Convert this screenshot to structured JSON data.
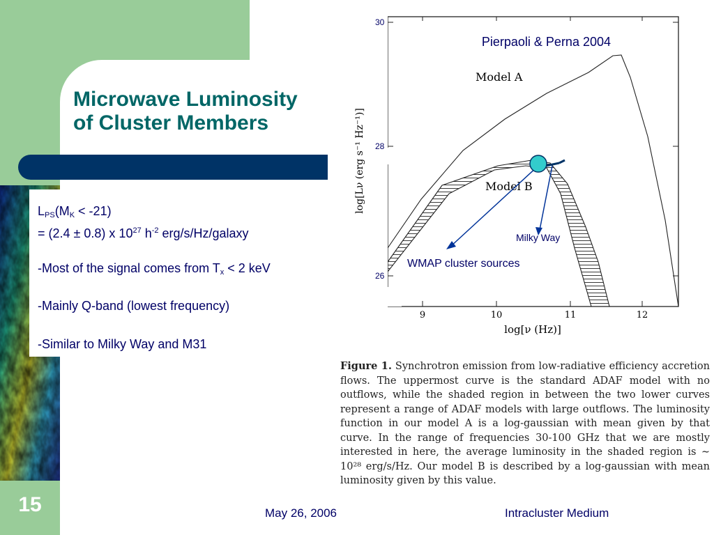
{
  "slide": {
    "title_line1": "Microwave Luminosity",
    "title_line2": "of Cluster Members",
    "number": "15",
    "footer_date": "May 26, 2006",
    "footer_name": "Intracluster Medium"
  },
  "body": {
    "lps_L": "L",
    "lps_sub": "PS",
    "lps_mid": "(M",
    "lps_k": "K",
    "lps_end": " < -21)",
    "value_prefix": "= (2.4 ± 0.8) x 10",
    "value_exp": "27",
    "value_h": " h",
    "value_hexp": "-2",
    "value_units": " erg/s/Hz/galaxy",
    "bullet1_a": "-Most of the signal comes from T",
    "bullet1_sub": "x",
    "bullet1_b": " < 2 keV",
    "bullet2": "-Mainly Q-band (lowest frequency)",
    "bullet3": "-Similar to Milky Way and M31"
  },
  "figure": {
    "citation": "Pierpaoli & Perna 2004",
    "label_model_a": "Model A",
    "label_model_b": "Model B",
    "label_milky_way": "Milky Way",
    "label_wmap": "WMAP cluster sources",
    "ylabel": "log[Lν (erg s⁻¹ Hz⁻¹)]",
    "xlabel": "log[ν (Hz)]",
    "y_tick_30": "30",
    "y_tick_28": "28",
    "y_tick_26": "26",
    "x_ticks": [
      "9",
      "10",
      "11",
      "12"
    ],
    "marker_color": "#33cccc",
    "arrow_color": "#003399"
  },
  "caption": {
    "label": "Figure 1.",
    "text": "Synchrotron emission from low-radiative efficiency accretion flows. The uppermost curve is the standard ADAF model with no outflows, while the shaded region in between the two lower curves represent a range of ADAF models with large outflows. The luminosity function in our model A is a log-gaussian with mean given by that curve. In the range of frequencies 30-100 GHz that we are mostly interested in here, the average luminosity in the shaded region is ∼ 10²⁸ erg/s/Hz. Our model B is described by a log-gaussian with mean luminosity given by this value."
  }
}
